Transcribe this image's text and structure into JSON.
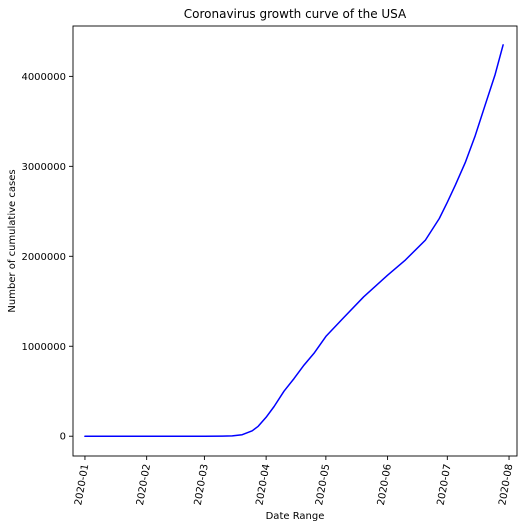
{
  "chart_data": {
    "type": "line",
    "title": "Coronavirus growth curve of the USA",
    "xlabel": "Date Range",
    "ylabel": "Number of cumulative cases",
    "x_tick_labels": [
      "2020-01",
      "2020-02",
      "2020-03",
      "2020-04",
      "2020-05",
      "2020-06",
      "2020-07",
      "2020-08"
    ],
    "x_tick_dates": [
      "2020-01-01",
      "2020-02-01",
      "2020-03-01",
      "2020-04-01",
      "2020-05-01",
      "2020-06-01",
      "2020-07-01",
      "2020-08-01"
    ],
    "y_tick_labels": [
      "0",
      "1000000",
      "2000000",
      "3000000",
      "4000000"
    ],
    "y_tick_values": [
      0,
      1000000,
      2000000,
      3000000,
      4000000
    ],
    "xlim": [
      "2019-12-26",
      "2020-08-05"
    ],
    "ylim": [
      -220000,
      4560000
    ],
    "grid": false,
    "line_color": "#0000ff",
    "series": [
      {
        "x": [
          "2020-01-01",
          "2020-02-01",
          "2020-03-01",
          "2020-03-10",
          "2020-03-15",
          "2020-03-20",
          "2020-03-25",
          "2020-03-28",
          "2020-04-01",
          "2020-04-05",
          "2020-04-10",
          "2020-04-15",
          "2020-04-20",
          "2020-04-25",
          "2020-05-01",
          "2020-05-10",
          "2020-05-20",
          "2020-06-01",
          "2020-06-10",
          "2020-06-20",
          "2020-06-27",
          "2020-07-01",
          "2020-07-05",
          "2020-07-10",
          "2020-07-15",
          "2020-07-20",
          "2020-07-25",
          "2020-07-29"
        ],
        "values": [
          0,
          0,
          0,
          800,
          3500,
          17000,
          60000,
          110000,
          210000,
          330000,
          500000,
          640000,
          790000,
          920000,
          1110000,
          1320000,
          1550000,
          1790000,
          1960000,
          2180000,
          2420000,
          2600000,
          2790000,
          3040000,
          3340000,
          3680000,
          4020000,
          4350000
        ]
      }
    ]
  }
}
